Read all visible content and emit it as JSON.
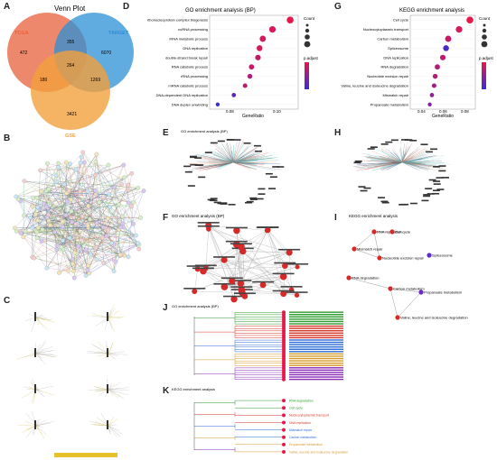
{
  "panels": {
    "A": {
      "letter": "A",
      "title": "Venn Plot",
      "sets": [
        {
          "name": "TCGA",
          "color": "#e8603c"
        },
        {
          "name": "TARGET",
          "color": "#2b8fd6"
        },
        {
          "name": "GSE",
          "color": "#f2a03d"
        }
      ],
      "counts": {
        "tcga_only": "472",
        "target_only": "6070",
        "gse_only": "3421",
        "tcga_target": "355",
        "tcga_gse": "180",
        "target_gse": "1269",
        "all": "264"
      }
    },
    "B": {
      "letter": "B"
    },
    "C": {
      "letter": "C"
    },
    "D": {
      "letter": "D",
      "title": "GO enrichment analysis (BP)",
      "xlabel": "GeneRatio",
      "legend_count": "Count",
      "legend_padj": "p.adjust",
      "xticks": [
        "0.08",
        "0.10"
      ]
    },
    "E": {
      "letter": "E",
      "title": "GO enrichment analysis (BP)"
    },
    "F": {
      "letter": "F",
      "title": "GO enrichment analysis (BP)"
    },
    "G": {
      "letter": "G",
      "title": "KEGG enrichment analysis",
      "xlabel": "GeneRatio",
      "legend_count": "Count",
      "legend_padj": "p.adjust",
      "xticks": [
        "0.04",
        "0.06",
        "0.08"
      ]
    },
    "H": {
      "letter": "H",
      "title": "KEGG enrichment analysis"
    },
    "I": {
      "letter": "I",
      "title": "KEGG enrichment analysis",
      "nodes": [
        "RNA replication",
        "Cell cycle",
        "Mismatch repair",
        "Nucleotide excision repair",
        "Spliceosome",
        "RNA degradation",
        "Carbon metabolism",
        "Propanoate metabolism",
        "Valine, leucine and isoleucine degradation"
      ]
    },
    "J": {
      "letter": "J",
      "title": "GO enrichment analysis (BP)"
    },
    "K": {
      "letter": "K",
      "title": "KEGG enrichment analysis",
      "terms": [
        "RNA degradation",
        "Cell cycle",
        "Nucleocytoplasmic transport",
        "DNA replication",
        "Mismatch repair",
        "Carbon metabolism",
        "Propanoate metabolism",
        "Valine, leucine and isoleucine degradation"
      ]
    }
  },
  "chart_data": [
    {
      "type": "scatter",
      "title": "GO enrichment analysis (BP)",
      "xlabel": "GeneRatio",
      "categories": [
        "ribonucleoprotein complex biogenesis",
        "ncRNA processing",
        "rRNA metabolic process",
        "DNA replication",
        "double-strand break repair",
        "RNA catabolic process",
        "rRNA processing",
        "mRNA catabolic process",
        "DNA-dependent DNA replication",
        "DNA duplex unwinding"
      ],
      "x": [
        0.11,
        0.099,
        0.093,
        0.091,
        0.09,
        0.086,
        0.085,
        0.082,
        0.075,
        0.065
      ],
      "color_level": [
        0.0,
        0.1,
        0.15,
        0.1,
        0.2,
        0.2,
        0.35,
        0.3,
        0.8,
        1.0
      ],
      "xlim": [
        0.06,
        0.115
      ]
    },
    {
      "type": "scatter",
      "title": "KEGG enrichment analysis",
      "xlabel": "GeneRatio",
      "categories": [
        "Cell cycle",
        "Nucleocytoplasmic transport",
        "Carbon metabolism",
        "Spliceosome",
        "DNA replication",
        "RNA degradation",
        "Nucleotide excision repair",
        "Valine, leucine and isoleucine degradation",
        "Mismatch repair",
        "Propanoate metabolism"
      ],
      "x": [
        0.085,
        0.075,
        0.065,
        0.063,
        0.06,
        0.055,
        0.053,
        0.052,
        0.05,
        0.048
      ],
      "color_level": [
        0.0,
        0.1,
        0.2,
        0.9,
        0.25,
        0.3,
        0.3,
        0.4,
        0.5,
        0.6
      ],
      "xlim": [
        0.03,
        0.09
      ]
    }
  ]
}
